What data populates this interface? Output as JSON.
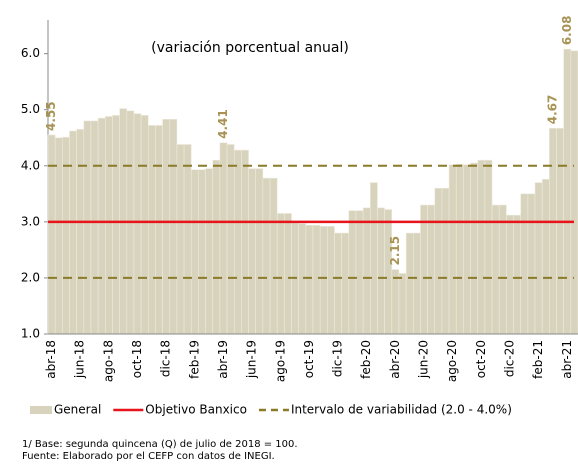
{
  "chart_data": {
    "type": "bar",
    "subtitle": "(variación porcentual anual)",
    "categories": [
      "abr-18",
      null,
      null,
      null,
      "jun-18",
      null,
      null,
      null,
      "ago-18",
      null,
      null,
      null,
      "oct-18",
      null,
      null,
      null,
      "dic-18",
      null,
      null,
      null,
      "feb-19",
      null,
      null,
      null,
      "abr-19",
      null,
      null,
      null,
      "jun-19",
      null,
      null,
      null,
      "ago-19",
      null,
      null,
      null,
      "oct-19",
      null,
      null,
      null,
      "dic-19",
      null,
      null,
      null,
      "feb-20",
      null,
      null,
      null,
      "abr-20",
      null,
      null,
      null,
      "jun-20",
      null,
      null,
      null,
      "ago-20",
      null,
      null,
      null,
      "oct-20",
      null,
      null,
      null,
      "dic-20",
      null,
      null,
      null,
      "feb-21",
      null,
      null,
      null,
      "abr-21",
      null
    ],
    "series": [
      {
        "name": "General",
        "color": "#d8d3bd",
        "values": [
          4.55,
          4.5,
          4.51,
          4.62,
          4.65,
          4.8,
          4.8,
          4.85,
          4.88,
          4.9,
          5.02,
          4.98,
          4.93,
          4.9,
          4.72,
          4.72,
          4.83,
          4.83,
          4.38,
          4.38,
          3.93,
          3.93,
          3.95,
          4.1,
          4.41,
          4.38,
          4.28,
          4.28,
          3.95,
          3.95,
          3.78,
          3.78,
          3.15,
          3.15,
          2.98,
          2.97,
          2.94,
          2.94,
          2.92,
          2.92,
          2.8,
          2.8,
          3.2,
          3.2,
          3.25,
          3.7,
          3.25,
          3.22,
          2.15,
          2.08,
          2.8,
          2.8,
          3.3,
          3.3,
          3.6,
          3.6,
          4.02,
          4.03,
          4.02,
          4.05,
          4.1,
          4.1,
          3.3,
          3.3,
          3.12,
          3.12,
          3.5,
          3.5,
          3.7,
          3.76,
          4.67,
          4.67,
          6.08,
          6.05
        ],
        "value_labels": [
          "4.55",
          null,
          null,
          null,
          null,
          null,
          null,
          null,
          null,
          null,
          null,
          null,
          null,
          null,
          null,
          null,
          null,
          null,
          null,
          null,
          null,
          null,
          null,
          null,
          "4.41",
          null,
          null,
          null,
          null,
          null,
          null,
          null,
          null,
          null,
          null,
          null,
          null,
          null,
          null,
          null,
          null,
          null,
          null,
          null,
          null,
          null,
          null,
          null,
          "2.15",
          null,
          null,
          null,
          null,
          null,
          null,
          null,
          null,
          null,
          null,
          null,
          null,
          null,
          null,
          null,
          null,
          null,
          null,
          null,
          null,
          null,
          "4.67",
          null,
          "6.08",
          null
        ]
      }
    ],
    "reference_lines": [
      {
        "name": "Objetivo Banxico",
        "color": "#e8141b",
        "values": [
          3.0
        ],
        "dashed": false
      },
      {
        "name": "Intervalo de variabilidad (2.0 - 4.0%)",
        "color": "#8c7a2b",
        "values": [
          2.0,
          4.0
        ],
        "dashed": true
      }
    ],
    "ylim": [
      1.0,
      6.6
    ],
    "yticks": [
      {
        "value": 1,
        "label": "1.0"
      },
      {
        "value": 2,
        "label": "2.0"
      },
      {
        "value": 3,
        "label": "3.0"
      },
      {
        "value": 4,
        "label": "4.0"
      },
      {
        "value": 5,
        "label": "5.0"
      },
      {
        "value": 6,
        "label": "6.0"
      }
    ],
    "value_label_color": "#a89354",
    "notes": [
      "1/ Base: segunda quincena (Q) de julio de 2018 = 100.",
      "Fuente: Elaborado por el CEFP con datos de INEGI."
    ]
  }
}
